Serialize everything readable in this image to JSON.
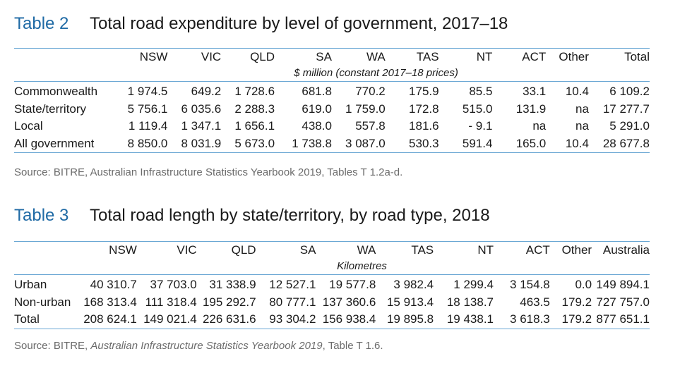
{
  "table2": {
    "number": "Table 2",
    "title": "Total road expenditure by level of government, 2017–18",
    "columns": [
      "",
      "NSW",
      "VIC",
      "QLD",
      "SA",
      "WA",
      "TAS",
      "NT",
      "ACT",
      "Other",
      "Total"
    ],
    "unit": "$ million (constant 2017–18 prices)",
    "rows": [
      [
        "Commonwealth",
        "1 974.5",
        "649.2",
        "1 728.6",
        "681.8",
        "770.2",
        "175.9",
        "85.5",
        "33.1",
        "10.4",
        "6 109.2"
      ],
      [
        "State/territory",
        "5 756.1",
        "6 035.6",
        "2 288.3",
        "619.0",
        "1 759.0",
        "172.8",
        "515.0",
        "131.9",
        "na",
        "17 277.7"
      ],
      [
        "Local",
        "1 119.4",
        "1 347.1",
        "1 656.1",
        "438.0",
        "557.8",
        "181.6",
        "- 9.1",
        "na",
        "na",
        "5 291.0"
      ],
      [
        "All government",
        "8 850.0",
        "8 031.9",
        "5 673.0",
        "1 738.8",
        "3 087.0",
        "530.3",
        "591.4",
        "165.0",
        "10.4",
        "28 677.8"
      ]
    ],
    "source": "Source:  BITRE, Australian Infrastructure Statistics Yearbook 2019, Tables T 1.2a-d."
  },
  "table3": {
    "number": "Table 3",
    "title": "Total road length by state/territory, by road type, 2018",
    "columns": [
      "",
      "NSW",
      "VIC",
      "QLD",
      "SA",
      "WA",
      "TAS",
      "NT",
      "ACT",
      "Other",
      "Australia"
    ],
    "unit": "Kilometres",
    "rows": [
      [
        "Urban",
        "40 310.7",
        "37 703.0",
        "31 338.9",
        "12 527.1",
        "19 577.8",
        "3 982.4",
        "1 299.4",
        "3 154.8",
        "0.0",
        "149 894.1"
      ],
      [
        "Non-urban",
        "168 313.4",
        "111 318.4",
        "195 292.7",
        "80 777.1",
        "137 360.6",
        "15 913.4",
        "18 138.7",
        "463.5",
        "179.2",
        "727 757.0"
      ],
      [
        "Total",
        "208 624.1",
        "149 021.4",
        "226 631.6",
        "93 304.2",
        "156 938.4",
        "19 895.8",
        "19 438.1",
        "3 618.3",
        "179.2",
        "877 651.1"
      ]
    ],
    "source_prefix": "Source:  BITRE, ",
    "source_italic": "Australian Infrastructure Statistics Yearbook 2019",
    "source_suffix": ", Table T 1.6."
  }
}
